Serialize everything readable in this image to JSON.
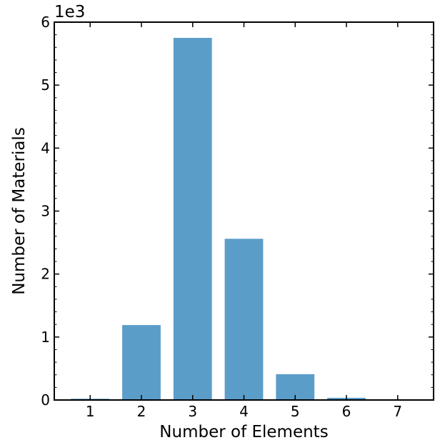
{
  "chart_data": {
    "type": "bar",
    "categories": [
      "1",
      "2",
      "3",
      "4",
      "5",
      "6",
      "7"
    ],
    "values": [
      20,
      1190,
      5750,
      2560,
      410,
      35,
      5
    ],
    "xlabel": "Number of Elements",
    "ylabel": "Number of Materials",
    "yticks": [
      "0",
      "1",
      "2",
      "3",
      "4",
      "5",
      "6"
    ],
    "y_scale_label": "1e3",
    "ylim": [
      0,
      6000
    ],
    "xlim": [
      0.3,
      7.7
    ],
    "bar_color": "#5b9dc9",
    "grid": false,
    "legend": "none"
  }
}
